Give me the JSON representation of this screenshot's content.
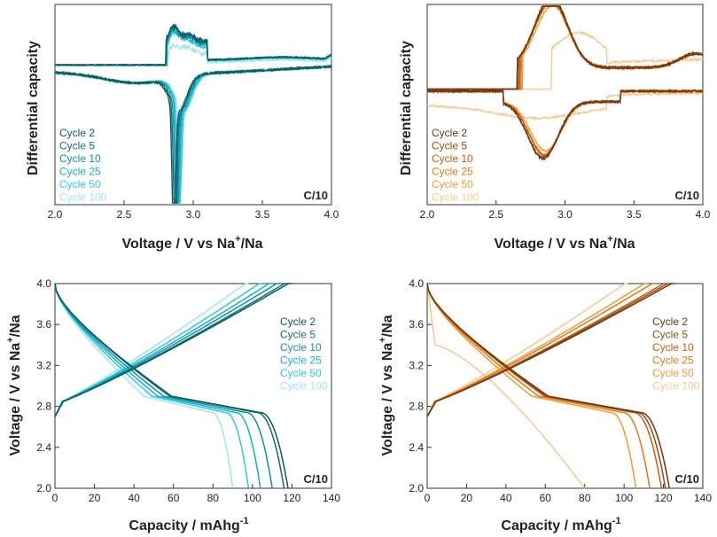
{
  "labels": {
    "ylabel_dq": "Differential capacity",
    "xlabel_v": "Voltage / V vs Na",
    "xlabel_v_sup": "+",
    "xlabel_v_tail": "/Na",
    "ylabel_v": "Voltage / V vs Na",
    "ylabel_v_sup": "+",
    "ylabel_v_tail": "/Na",
    "xlabel_cap": "Capacity / mAhg",
    "xlabel_cap_sup": "-1",
    "rate": "C/10"
  },
  "chart_data": [
    {
      "id": "dqdv-teal",
      "type": "line",
      "title": "",
      "xlabel": "Voltage / V vs Na+/Na",
      "ylabel": "Differential capacity",
      "xlim": [
        2.0,
        4.0
      ],
      "xticks": [
        "2.0",
        "2.5",
        "3.0",
        "3.5",
        "4.0"
      ],
      "ylim": [
        -1.0,
        1.0
      ],
      "annotation": "C/10",
      "legend_position": "bottom-left",
      "series": [
        {
          "name": "Cycle 2",
          "color": "#0d5a5e",
          "ox_peak": 2.96,
          "ox_height": 0.72,
          "red_peak": 2.86,
          "red_depth": 1.0
        },
        {
          "name": "Cycle 5",
          "color": "#0f7078",
          "ox_peak": 2.96,
          "ox_height": 0.7,
          "red_peak": 2.87,
          "red_depth": 0.95
        },
        {
          "name": "Cycle 10",
          "color": "#1090a0",
          "ox_peak": 2.95,
          "ox_height": 0.66,
          "red_peak": 2.88,
          "red_depth": 0.9
        },
        {
          "name": "Cycle 25",
          "color": "#15b0c8",
          "ox_peak": 2.95,
          "ox_height": 0.62,
          "red_peak": 2.89,
          "red_depth": 0.85
        },
        {
          "name": "Cycle 50",
          "color": "#2cc8e0",
          "ox_peak": 2.94,
          "ox_height": 0.58,
          "red_peak": 2.9,
          "red_depth": 0.8
        },
        {
          "name": "Cycle 100",
          "color": "#9ee6f0",
          "ox_peak": 2.95,
          "ox_height": 0.35,
          "red_peak": 2.91,
          "red_depth": 0.55
        }
      ]
    },
    {
      "id": "dqdv-orange",
      "type": "line",
      "title": "",
      "xlabel": "Voltage / V vs Na+/Na",
      "ylabel": "Differential capacity",
      "xlim": [
        2.0,
        4.0
      ],
      "xticks": [
        "2.0",
        "2.5",
        "3.0",
        "3.5",
        "4.0"
      ],
      "ylim": [
        -1.0,
        1.0
      ],
      "annotation": "C/10",
      "legend_position": "bottom-left",
      "series": [
        {
          "name": "Cycle 2",
          "color": "#6e3510",
          "ox_peak": 2.9,
          "ox_height": 0.9,
          "red_peak": 2.84,
          "red_depth": 0.7
        },
        {
          "name": "Cycle 5",
          "color": "#9a4a12",
          "ox_peak": 2.9,
          "ox_height": 0.88,
          "red_peak": 2.84,
          "red_depth": 0.68
        },
        {
          "name": "Cycle 10",
          "color": "#c85c10",
          "ox_peak": 2.9,
          "ox_height": 0.86,
          "red_peak": 2.85,
          "red_depth": 0.66
        },
        {
          "name": "Cycle 25",
          "color": "#e07810",
          "ox_peak": 2.9,
          "ox_height": 0.84,
          "red_peak": 2.85,
          "red_depth": 0.64
        },
        {
          "name": "Cycle 50",
          "color": "#f09a30",
          "ox_peak": 2.91,
          "ox_height": 0.8,
          "red_peak": 2.86,
          "red_depth": 0.6
        },
        {
          "name": "Cycle 100",
          "color": "#f7c88e",
          "ox_peak": 3.1,
          "ox_height": 0.45,
          "red_peak": 2.8,
          "red_depth": 0.25
        }
      ]
    },
    {
      "id": "gcd-teal",
      "type": "line",
      "title": "",
      "xlabel": "Capacity / mAhg-1",
      "ylabel": "Voltage / V vs Na+/Na",
      "xlim": [
        0,
        140
      ],
      "xticks": [
        "0",
        "20",
        "40",
        "60",
        "80",
        "100",
        "120",
        "140"
      ],
      "ylim": [
        2.0,
        4.0
      ],
      "yticks": [
        "2.0",
        "2.4",
        "2.8",
        "3.2",
        "3.6",
        "4.0"
      ],
      "annotation": "C/10",
      "legend_position": "right",
      "series": [
        {
          "name": "Cycle 2",
          "color": "#0d5a5e",
          "charge_cap": 120,
          "discharge_cap": 118
        },
        {
          "name": "Cycle 5",
          "color": "#0f7078",
          "charge_cap": 118,
          "discharge_cap": 116
        },
        {
          "name": "Cycle 10",
          "color": "#1090a0",
          "charge_cap": 114,
          "discharge_cap": 110
        },
        {
          "name": "Cycle 25",
          "color": "#15b0c8",
          "charge_cap": 110,
          "discharge_cap": 104
        },
        {
          "name": "Cycle 50",
          "color": "#2cc8e0",
          "charge_cap": 105,
          "discharge_cap": 98
        },
        {
          "name": "Cycle 100",
          "color": "#9ee6f0",
          "charge_cap": 98,
          "discharge_cap": 90
        }
      ]
    },
    {
      "id": "gcd-orange",
      "type": "line",
      "title": "",
      "xlabel": "Capacity / mAhg-1",
      "ylabel": "Voltage / V vs Na+/Na",
      "xlim": [
        0,
        140
      ],
      "xticks": [
        "0",
        "20",
        "40",
        "60",
        "80",
        "100",
        "120",
        "140"
      ],
      "ylim": [
        2.0,
        4.0
      ],
      "yticks": [
        "2.0",
        "2.4",
        "2.8",
        "3.2",
        "3.6",
        "4.0"
      ],
      "annotation": "C/10",
      "legend_position": "right",
      "series": [
        {
          "name": "Cycle 2",
          "color": "#6e3510",
          "charge_cap": 126,
          "discharge_cap": 123
        },
        {
          "name": "Cycle 5",
          "color": "#9a4a12",
          "charge_cap": 124,
          "discharge_cap": 121
        },
        {
          "name": "Cycle 10",
          "color": "#c85c10",
          "charge_cap": 122,
          "discharge_cap": 119
        },
        {
          "name": "Cycle 25",
          "color": "#e07810",
          "charge_cap": 116,
          "discharge_cap": 113
        },
        {
          "name": "Cycle 50",
          "color": "#f09a30",
          "charge_cap": 112,
          "discharge_cap": 106
        },
        {
          "name": "Cycle 100",
          "color": "#f7c88e",
          "charge_cap": 102,
          "discharge_cap": 80
        }
      ]
    }
  ]
}
